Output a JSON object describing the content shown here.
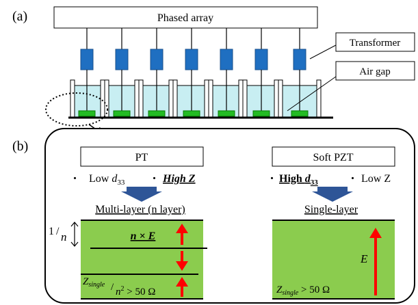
{
  "panel_a": {
    "label": "(a)",
    "phased_array": "Phased array",
    "transformer": "Transformer",
    "air_gap": "Air gap"
  },
  "panel_b": {
    "label": "(b)",
    "left": {
      "material": "PT",
      "bullet": "・",
      "prop1_text": "Low ",
      "prop1_sym": "d",
      "prop1_sub": "33",
      "prop2": "High Z",
      "method": "Multi-layer (n layer)",
      "thickness_num": "1",
      "thickness_den": "n",
      "field_label": "n × E",
      "impedance_sym": "Z",
      "impedance_sub": "single",
      "impedance_den": "n",
      "impedance_exp": "2",
      "impedance_cmp": " > 50 Ω"
    },
    "right": {
      "material": "Soft PZT",
      "bullet": "・",
      "prop1_text": "High ",
      "prop1_sym": "d",
      "prop1_sub": "33",
      "prop2": "Low Z",
      "method": "Single-layer",
      "field_label": "E",
      "impedance_sym": "Z",
      "impedance_sub": "single",
      "impedance_cmp": " > 50 Ω"
    }
  },
  "colors": {
    "transformer": "#1f6fc1",
    "transformer_edge": "#1a4f8a",
    "liquid": "#c8eef2",
    "element": "#23bb23",
    "layer_fill": "#8bcc4e",
    "arrow": "#ff0000",
    "down_arrow": "#2e5597"
  }
}
